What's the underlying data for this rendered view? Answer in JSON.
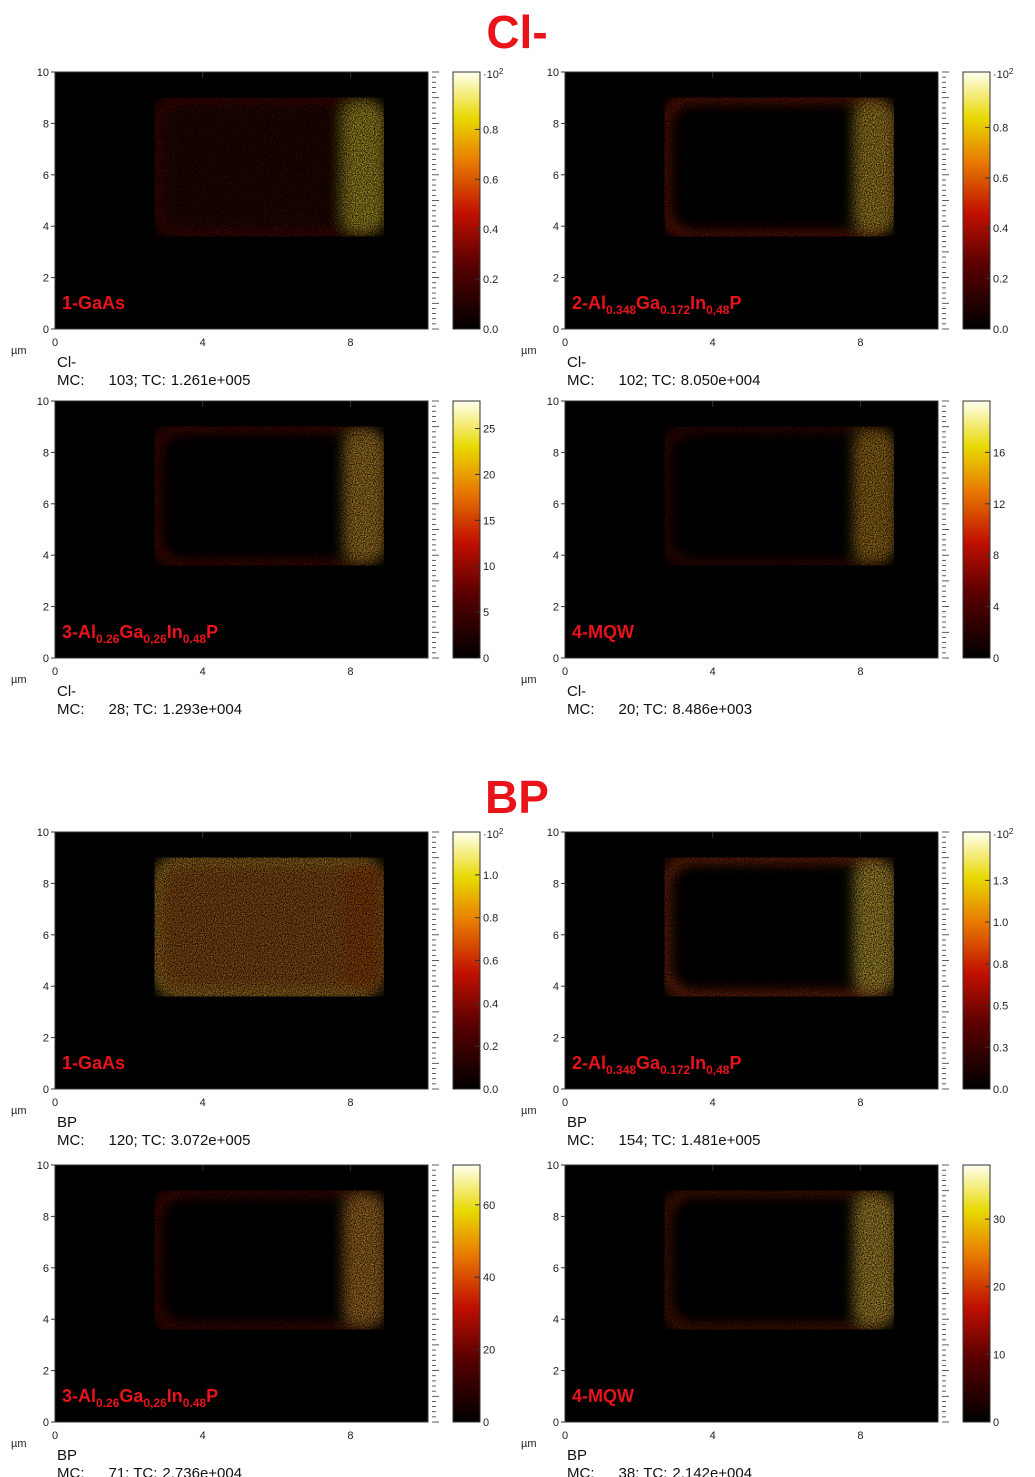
{
  "axes": {
    "unit": "µm",
    "xlim": [
      0,
      10.1
    ],
    "ylim": [
      0,
      10
    ],
    "xticks": [
      0,
      4,
      8
    ],
    "yticks": [
      0,
      2,
      4,
      6,
      8,
      10
    ]
  },
  "mc_label": "MC:",
  "tc_label": "; TC:",
  "sections": [
    {
      "title": "Cl-",
      "panels": [
        {
          "label": [
            "1-GaAs"
          ],
          "mc": 103,
          "tc": "1.261e+005",
          "cbar": {
            "lim": [
              0,
              1.03
            ],
            "scale": "·10",
            "scale_exp": "2",
            "ticks": [
              {
                "value": 0,
                "label": "0.0"
              },
              0.2,
              0.4,
              0.6,
              0.8
            ]
          }
        },
        {
          "label": [
            "2-Al",
            "0.348",
            "Ga",
            "0.172",
            "In",
            "0,48",
            "P"
          ],
          "mc": 102,
          "tc": "8.050e+004",
          "cbar": {
            "lim": [
              0,
              1.02
            ],
            "scale": "·10",
            "scale_exp": "2",
            "ticks": [
              {
                "value": 0,
                "label": "0.0"
              },
              0.2,
              0.4,
              0.6,
              0.8
            ]
          }
        },
        {
          "label": [
            "3-Al",
            "0.26",
            "Ga",
            "0,26",
            "In",
            "0.48",
            "P"
          ],
          "mc": 28,
          "tc": "1.293e+004",
          "cbar": {
            "lim": [
              0,
              28
            ],
            "ticks": [
              0,
              5,
              10,
              15,
              20,
              25
            ]
          }
        },
        {
          "label": [
            "4-MQW"
          ],
          "mc": 20,
          "tc": "8.486e+003",
          "cbar": {
            "lim": [
              0,
              20
            ],
            "ticks": [
              0,
              4,
              8,
              12,
              16
            ]
          }
        }
      ]
    },
    {
      "title": "BP",
      "panels": [
        {
          "label": [
            "1-GaAs"
          ],
          "mc": 120,
          "tc": "3.072e+005",
          "cbar": {
            "lim": [
              0,
              1.2
            ],
            "scale": "·10",
            "scale_exp": "2",
            "ticks": [
              {
                "value": 0,
                "label": "0.0"
              },
              0.2,
              0.4,
              0.6,
              0.8,
              {
                "value": 1,
                "label": "1.0"
              }
            ]
          }
        },
        {
          "label": [
            "2-Al",
            "0.348",
            "Ga",
            "0.172",
            "In",
            "0,48",
            "P"
          ],
          "mc": 154,
          "tc": "1.481e+005",
          "cbar": {
            "lim": [
              0,
              1.54
            ],
            "scale": "·10",
            "scale_exp": "2",
            "ticks": [
              {
                "value": 0,
                "label": "0.0"
              },
              {
                "value": 0.25,
                "label": "0.3"
              },
              0.5,
              {
                "value": 0.75,
                "label": "0.8"
              },
              {
                "value": 1,
                "label": "1.0"
              },
              {
                "value": 1.25,
                "label": "1.3"
              }
            ]
          }
        },
        {
          "label": [
            "3-Al",
            "0.26",
            "Ga",
            "0,26",
            "In",
            "0.48",
            "P"
          ],
          "mc": 71,
          "tc": "2.736e+004",
          "cbar": {
            "lim": [
              0,
              71
            ],
            "ticks": [
              0,
              20,
              40,
              60
            ]
          }
        },
        {
          "label": [
            "4-MQW"
          ],
          "mc": 38,
          "tc": "2.142e+004",
          "cbar": {
            "lim": [
              0,
              38
            ],
            "ticks": [
              0,
              10,
              20,
              30
            ]
          }
        }
      ]
    }
  ]
}
